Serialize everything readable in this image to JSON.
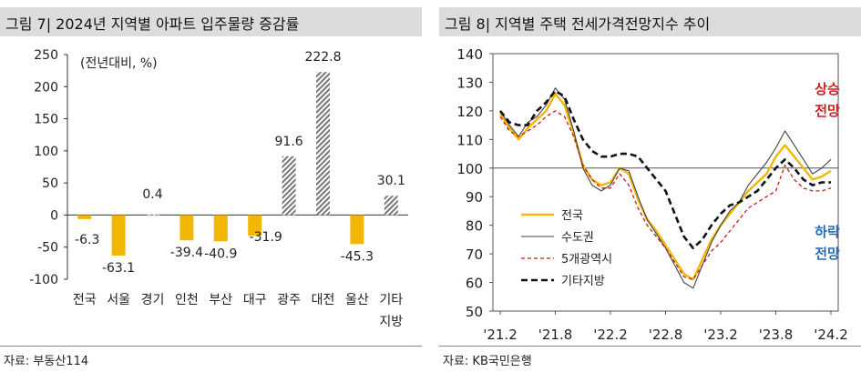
{
  "left": {
    "title": "그림 7| 2024년 지역별 아파트 입주물량 증감률",
    "source": "자료: 부동산114",
    "chart_data": {
      "type": "bar",
      "title": "그림 7| 2024년 지역별 아파트 입주물량 증감률",
      "unit_label": "(전년대비, %)",
      "categories": [
        "전국",
        "서울",
        "경기",
        "인천",
        "부산",
        "대구",
        "광주",
        "대전",
        "울산",
        "기타지방"
      ],
      "category_labels": [
        [
          "전국"
        ],
        [
          "서울"
        ],
        [
          "경기"
        ],
        [
          "인천"
        ],
        [
          "부산"
        ],
        [
          "대구"
        ],
        [
          "광주"
        ],
        [
          "대전"
        ],
        [
          "울산"
        ],
        [
          "기타",
          "지방"
        ]
      ],
      "values": [
        -6.3,
        -63.1,
        0.4,
        -39.4,
        -40.9,
        -31.9,
        91.6,
        222.8,
        -45.3,
        30.1
      ],
      "value_labels": [
        "-6.3",
        "-63.1",
        "0.4",
        "-39.4",
        "-40.9",
        "-31.9",
        "91.6",
        "222.8",
        "-45.3",
        "30.1"
      ],
      "yticks": [
        "250",
        "200",
        "150",
        "100",
        "50",
        "0",
        "-50",
        "-100"
      ],
      "ylim": [
        -100,
        250
      ],
      "colors": {
        "negative": "#f2b705",
        "positive_hatch": "#777777"
      }
    }
  },
  "right": {
    "title": "그림 8| 지역별 주택 전세가격전망지수 추이",
    "source": "자료: KB국민은행",
    "chart_data": {
      "type": "line",
      "title": "그림 8| 지역별 주택 전세가격전망지수 추이",
      "xticks": [
        "'21.2",
        "'21.8",
        "'22.2",
        "'22.8",
        "'23.2",
        "'23.8",
        "'24.2"
      ],
      "yticks": [
        "140",
        "130",
        "120",
        "110",
        "100",
        "90",
        "80",
        "70",
        "60",
        "50"
      ],
      "ylim": [
        50,
        140
      ],
      "reference_line": 100,
      "annotation_up": [
        "상승",
        "전망"
      ],
      "annotation_down": [
        "하락",
        "전망"
      ],
      "annotation_colors": {
        "up": "#cc2222",
        "down": "#2a6db5"
      },
      "x": [
        "2021-02",
        "2021-03",
        "2021-04",
        "2021-05",
        "2021-06",
        "2021-07",
        "2021-08",
        "2021-09",
        "2021-10",
        "2021-11",
        "2021-12",
        "2022-01",
        "2022-02",
        "2022-03",
        "2022-04",
        "2022-05",
        "2022-06",
        "2022-07",
        "2022-08",
        "2022-09",
        "2022-10",
        "2022-11",
        "2022-12",
        "2023-01",
        "2023-02",
        "2023-03",
        "2023-04",
        "2023-05",
        "2023-06",
        "2023-07",
        "2023-08",
        "2023-09",
        "2023-10",
        "2023-11",
        "2023-12",
        "2024-01",
        "2024-02"
      ],
      "series": [
        {
          "name": "전국",
          "color": "#f2b705",
          "style": "solid",
          "width": 2.4,
          "values": [
            119,
            114,
            110,
            114,
            117,
            120,
            126,
            122,
            112,
            101,
            96,
            94,
            95,
            100,
            98,
            89,
            82,
            78,
            73,
            68,
            63,
            61,
            68,
            75,
            80,
            84,
            88,
            92,
            95,
            98,
            104,
            108,
            104,
            100,
            96,
            97,
            99
          ]
        },
        {
          "name": "수도권",
          "color": "#444444",
          "style": "solid",
          "width": 1.1,
          "values": [
            120,
            115,
            111,
            116,
            118,
            122,
            128,
            124,
            113,
            100,
            94,
            92,
            94,
            100,
            99,
            90,
            82,
            77,
            72,
            66,
            60,
            58,
            66,
            74,
            80,
            85,
            88,
            94,
            98,
            102,
            107,
            113,
            108,
            103,
            98,
            100,
            103
          ]
        },
        {
          "name": "5개광역시",
          "color": "#c41e1e",
          "style": "dashed",
          "width": 1.3,
          "values": [
            118,
            113,
            111,
            113,
            115,
            118,
            120,
            118,
            111,
            101,
            96,
            93,
            93,
            98,
            94,
            86,
            80,
            76,
            72,
            67,
            62,
            61,
            66,
            71,
            74,
            78,
            82,
            86,
            88,
            90,
            92,
            101,
            96,
            93,
            92,
            92,
            93
          ]
        },
        {
          "name": "기타지방",
          "color": "#111111",
          "style": "dashed-bold",
          "width": 2.6,
          "values": [
            120,
            116,
            115,
            115,
            120,
            123,
            127,
            125,
            117,
            110,
            106,
            104,
            104,
            105,
            105,
            104,
            100,
            96,
            92,
            84,
            76,
            72,
            75,
            80,
            84,
            87,
            88,
            90,
            92,
            96,
            100,
            103,
            100,
            96,
            94,
            95,
            95
          ]
        }
      ]
    }
  }
}
